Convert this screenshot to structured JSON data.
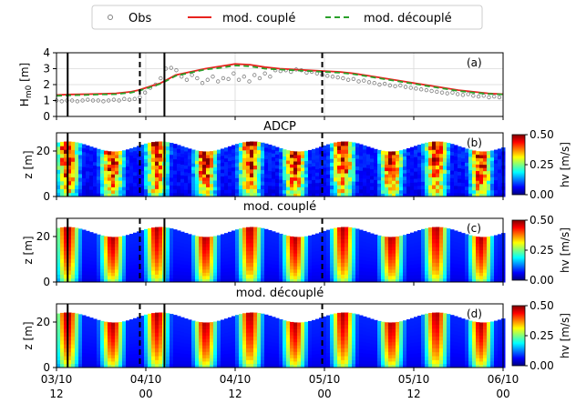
{
  "legend": {
    "items": [
      {
        "label": "Obs",
        "marker": "circle",
        "color": "#808080"
      },
      {
        "label": "mod. couplé",
        "marker": "line",
        "color": "#e8231e"
      },
      {
        "label": "mod. découplé",
        "marker": "dashed",
        "color": "#2aa02a"
      }
    ]
  },
  "panels": [
    {
      "id": "a",
      "label": "(a)",
      "title": ""
    },
    {
      "id": "b",
      "label": "(b)",
      "title": "ADCP"
    },
    {
      "id": "c",
      "label": "(c)",
      "title": "mod. couplé"
    },
    {
      "id": "d",
      "label": "(d)",
      "title": "mod. découplé"
    }
  ],
  "colorbar": {
    "label": "hv [m/s]",
    "ticks": [
      "0.50",
      "0.25",
      "0.00"
    ]
  },
  "colors": {
    "obs": "#808080",
    "mod_couple": "#e8231e",
    "mod_decouple": "#2aa02a"
  },
  "chart_data": {
    "type": "line",
    "x_unit": "hours since 03/10 00:00",
    "x_range": [
      12,
      72
    ],
    "x_ticks": [
      {
        "value": 12,
        "label_line1": "03/10",
        "label_line2": "12"
      },
      {
        "value": 24,
        "label_line1": "04/10",
        "label_line2": "00"
      },
      {
        "value": 36,
        "label_line1": "04/10",
        "label_line2": "12"
      },
      {
        "value": 48,
        "label_line1": "05/10",
        "label_line2": "00"
      },
      {
        "value": 60,
        "label_line1": "05/10",
        "label_line2": "12"
      },
      {
        "value": 72,
        "label_line1": "06/10",
        "label_line2": "00"
      }
    ],
    "vertical_markers": [
      {
        "x": 13.5,
        "style": "solid"
      },
      {
        "x": 23.2,
        "style": "dashed"
      },
      {
        "x": 26.5,
        "style": "solid"
      },
      {
        "x": 47.7,
        "style": "dashed"
      }
    ],
    "panel_a": {
      "ylabel": "H_m0 [m]",
      "ylim": [
        0,
        4
      ],
      "yticks": [
        0,
        1,
        2,
        3,
        4
      ],
      "grid": true,
      "series": [
        {
          "name": "mod. couplé",
          "style": "solid",
          "x": [
            12,
            14,
            16,
            18,
            20,
            22,
            23,
            24,
            25,
            26,
            27,
            28,
            30,
            32,
            34,
            36,
            38,
            40,
            42,
            44,
            46,
            48,
            50,
            52,
            54,
            56,
            58,
            60,
            62,
            64,
            66,
            68,
            70,
            72
          ],
          "y": [
            1.35,
            1.38,
            1.4,
            1.42,
            1.45,
            1.55,
            1.65,
            1.8,
            1.95,
            2.1,
            2.35,
            2.6,
            2.8,
            3.0,
            3.15,
            3.3,
            3.25,
            3.1,
            3.0,
            2.95,
            2.9,
            2.85,
            2.8,
            2.7,
            2.55,
            2.4,
            2.25,
            2.1,
            1.95,
            1.8,
            1.65,
            1.55,
            1.45,
            1.4
          ]
        },
        {
          "name": "mod. découplé",
          "style": "dashed",
          "x": [
            12,
            14,
            16,
            18,
            20,
            22,
            23,
            24,
            25,
            26,
            27,
            28,
            30,
            32,
            34,
            36,
            38,
            40,
            42,
            44,
            46,
            48,
            50,
            52,
            54,
            56,
            58,
            60,
            62,
            64,
            66,
            68,
            70,
            72
          ],
          "y": [
            1.3,
            1.33,
            1.35,
            1.38,
            1.4,
            1.5,
            1.6,
            1.75,
            1.9,
            2.05,
            2.3,
            2.55,
            2.75,
            2.95,
            3.05,
            3.2,
            3.15,
            3.0,
            2.95,
            2.9,
            2.85,
            2.8,
            2.75,
            2.65,
            2.5,
            2.35,
            2.2,
            2.05,
            1.9,
            1.75,
            1.6,
            1.5,
            1.42,
            1.38
          ]
        },
        {
          "name": "Obs",
          "style": "markers",
          "x": [
            12,
            12.7,
            13.4,
            14.1,
            14.8,
            15.5,
            16.2,
            16.9,
            17.6,
            18.3,
            19,
            19.7,
            20.4,
            21.1,
            21.8,
            22.5,
            23.2,
            23.9,
            24.6,
            25.3,
            26,
            26.7,
            27.4,
            28.1,
            28.8,
            29.5,
            30.2,
            30.9,
            31.6,
            32.3,
            33,
            33.7,
            34.4,
            35.1,
            35.8,
            36.5,
            37.2,
            37.9,
            38.6,
            39.3,
            40,
            40.7,
            41.4,
            42.1,
            42.8,
            43.5,
            44.2,
            44.9,
            45.6,
            46.3,
            47,
            47.7,
            48.4,
            49.1,
            49.8,
            50.5,
            51.2,
            51.9,
            52.6,
            53.3,
            54,
            54.7,
            55.4,
            56.1,
            56.8,
            57.5,
            58.2,
            58.9,
            59.6,
            60.3,
            61,
            61.7,
            62.4,
            63.1,
            63.8,
            64.5,
            65.2,
            65.9,
            66.6,
            67.3,
            68,
            68.7,
            69.4,
            70.1,
            70.8,
            71.5
          ],
          "y": [
            1.0,
            0.95,
            1.0,
            1.0,
            0.95,
            1.0,
            1.05,
            1.0,
            1.0,
            0.95,
            1.0,
            1.05,
            1.0,
            1.1,
            1.05,
            1.1,
            1.2,
            1.5,
            1.8,
            2.0,
            2.4,
            3.0,
            3.05,
            2.9,
            2.5,
            2.3,
            2.6,
            2.4,
            2.1,
            2.3,
            2.5,
            2.2,
            2.4,
            2.35,
            2.7,
            2.3,
            2.5,
            2.2,
            2.6,
            2.4,
            2.7,
            2.5,
            2.9,
            2.85,
            2.9,
            2.8,
            2.95,
            2.9,
            2.75,
            2.8,
            2.7,
            2.6,
            2.55,
            2.5,
            2.45,
            2.4,
            2.3,
            2.35,
            2.2,
            2.25,
            2.15,
            2.1,
            2.0,
            2.05,
            1.95,
            1.9,
            1.95,
            1.85,
            1.8,
            1.75,
            1.7,
            1.65,
            1.6,
            1.55,
            1.5,
            1.45,
            1.5,
            1.4,
            1.35,
            1.4,
            1.3,
            1.25,
            1.3,
            1.2,
            1.25,
            1.2
          ]
        }
      ]
    },
    "panel_b": {
      "type": "heatmap",
      "title": "ADCP",
      "ylabel": "z [m]",
      "ylim": [
        0,
        28
      ],
      "yticks": [
        0,
        20
      ],
      "clim": [
        0,
        0.5
      ],
      "colormap": "jet",
      "top_of_data": "fluctuating ~19-24 m (semi-diurnal)",
      "high_velocity_bands_hours": [
        13.5,
        19.5,
        25.5,
        32.0,
        38.0,
        44.0,
        50.5,
        57.0,
        63.0,
        69.0
      ]
    },
    "panel_c": {
      "type": "heatmap",
      "title": "mod. couplé",
      "ylabel": "z [m]",
      "ylim": [
        0,
        28
      ],
      "yticks": [
        0,
        20
      ],
      "clim": [
        0,
        0.5
      ],
      "colormap": "jet",
      "high_velocity_bands_hours": [
        13.5,
        19.5,
        25.5,
        32.0,
        38.0,
        44.0,
        50.5,
        57.0,
        63.0,
        69.0
      ]
    },
    "panel_d": {
      "type": "heatmap",
      "title": "mod. découplé",
      "ylabel": "z [m]",
      "ylim": [
        0,
        28
      ],
      "yticks": [
        0,
        20
      ],
      "clim": [
        0,
        0.5
      ],
      "colormap": "jet",
      "high_velocity_bands_hours": [
        13.5,
        19.5,
        25.5,
        32.0,
        38.0,
        44.0,
        50.5,
        57.0,
        63.0,
        69.0
      ]
    }
  }
}
